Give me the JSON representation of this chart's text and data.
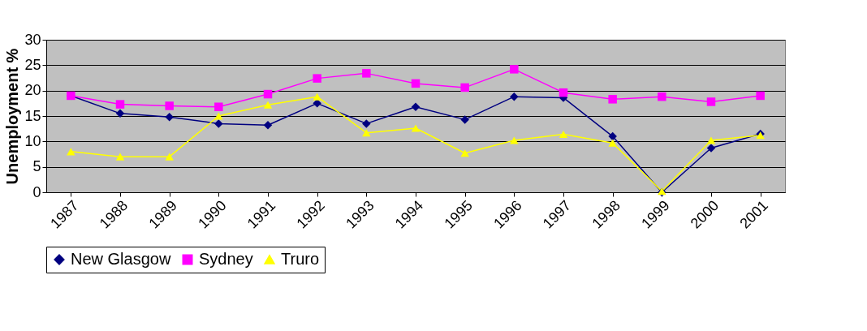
{
  "chart_data": {
    "type": "line",
    "ylabel": "Unemployment %",
    "categories": [
      "1987",
      "1988",
      "1989",
      "1990",
      "1991",
      "1992",
      "1993",
      "1994",
      "1995",
      "1996",
      "1997",
      "1998",
      "1999",
      "2000",
      "2001"
    ],
    "series": [
      {
        "name": "New Glasgow",
        "color": "#000080",
        "marker": "diamond",
        "values": [
          19,
          15.5,
          14.8,
          13.5,
          13.2,
          17.5,
          13.5,
          16.8,
          14.3,
          18.8,
          18.6,
          11,
          0,
          8.7,
          11.5
        ]
      },
      {
        "name": "Sydney",
        "color": "#ff00ff",
        "marker": "square",
        "values": [
          19,
          17.3,
          17,
          16.8,
          19.3,
          22.4,
          23.4,
          21.4,
          20.6,
          24.2,
          19.6,
          18.3,
          18.8,
          17.8,
          19
        ]
      },
      {
        "name": "Truro",
        "color": "#ffff00",
        "marker": "triangle",
        "values": [
          8,
          7,
          7,
          15,
          17.2,
          18.8,
          11.7,
          12.6,
          7.7,
          10.2,
          11.4,
          9.7,
          0.2,
          10.2,
          11.2
        ]
      }
    ],
    "ylim": [
      0,
      30
    ],
    "yticks": [
      0,
      5,
      10,
      15,
      20,
      25,
      30
    ],
    "grid": "y",
    "legend": "bottom",
    "line_style": "solid"
  }
}
